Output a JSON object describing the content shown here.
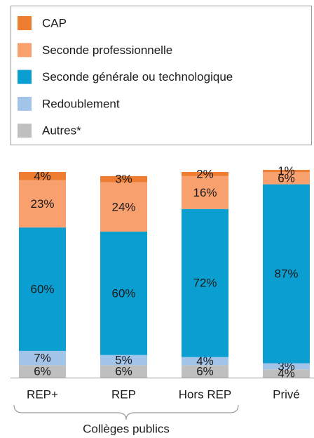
{
  "chart_data": {
    "type": "stacked_bar",
    "categories": [
      "REP+",
      "REP",
      "Hors REP",
      "Privé"
    ],
    "group_label": "Collèges publics",
    "ylim": [
      0,
      100
    ],
    "legend": "top",
    "series": [
      {
        "name": "Autres*",
        "color": "#bfbfbf",
        "values": [
          6,
          6,
          6,
          4
        ],
        "value_labels": [
          "6%",
          "6%",
          "6%",
          "4%"
        ]
      },
      {
        "name": "Redoublement",
        "color": "#a3c4e9",
        "values": [
          7,
          5,
          4,
          3
        ],
        "value_labels": [
          "7%",
          "5%",
          "4%",
          "3%"
        ]
      },
      {
        "name": "Seconde générale ou technologique",
        "color": "#0b9fd1",
        "values": [
          60,
          60,
          72,
          87
        ],
        "value_labels": [
          "60%",
          "60%",
          "72%",
          "87%"
        ]
      },
      {
        "name": "Seconde professionnelle",
        "color": "#f9a06f",
        "values": [
          23,
          24,
          16,
          6
        ],
        "value_labels": [
          "23%",
          "24%",
          "16%",
          "6%"
        ]
      },
      {
        "name": "CAP",
        "color": "#ee7d31",
        "values": [
          4,
          3,
          2,
          1
        ],
        "value_labels": [
          "4%",
          "3%",
          "2%",
          "1%"
        ]
      }
    ]
  }
}
